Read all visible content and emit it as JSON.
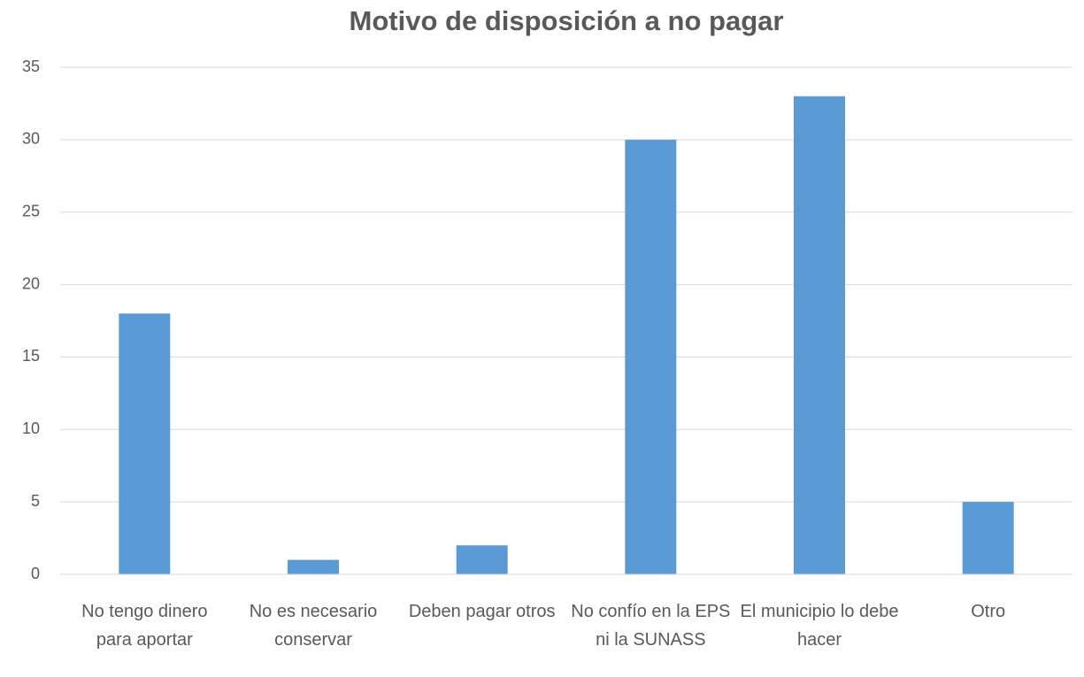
{
  "chart_data": {
    "type": "bar",
    "title": "Motivo de disposición a no pagar",
    "categories": [
      "No tengo dinero para aportar",
      "No es necesario conservar",
      "Deben pagar otros",
      "No confío en la EPS ni la SUNASS",
      "El municipio lo debe hacer",
      "Otro"
    ],
    "values": [
      18,
      1,
      2,
      30,
      33,
      5
    ],
    "color": "#5b9bd5",
    "ylim": [
      0,
      35
    ],
    "yticks": [
      0,
      5,
      10,
      15,
      20,
      25,
      30,
      35
    ],
    "grid": true
  }
}
